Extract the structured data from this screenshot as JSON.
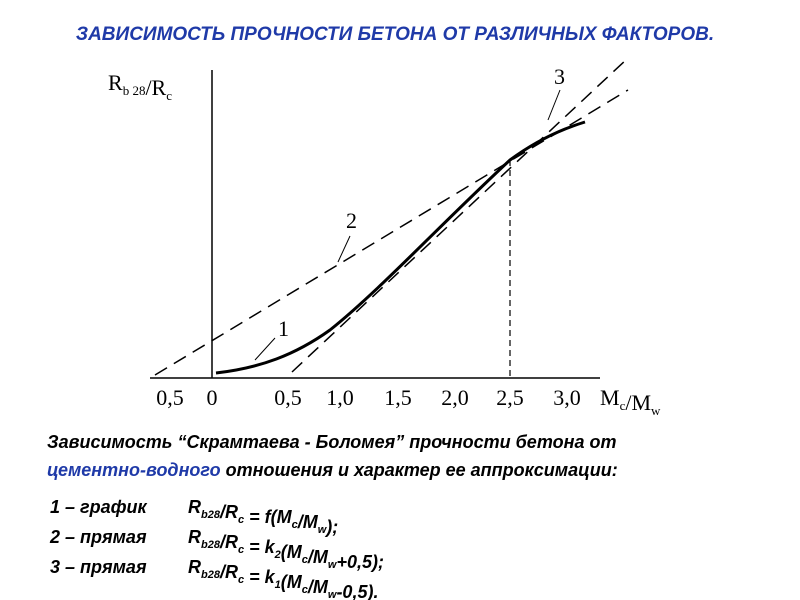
{
  "header": {
    "title": "ЗАВИСИМОСТЬ ПРОЧНОСТИ БЕТОНА ОТ РАЗЛИЧНЫХ ФАКТОРОВ."
  },
  "diagram": {
    "y_label": [
      {
        "text": "R",
        "sub": false
      },
      {
        "text": "b 28",
        "sub": true
      },
      {
        "text": "/R",
        "sub": false
      },
      {
        "text": "c",
        "sub": true
      }
    ],
    "x_label": [
      {
        "text": "M",
        "sub": false
      },
      {
        "text": "c",
        "sub": true
      },
      {
        "text": "/M",
        "sub": false
      },
      {
        "text": "w",
        "sub": true
      }
    ],
    "x_tick_labels": [
      "0,5",
      "0",
      "0,5",
      "1,0",
      "1,5",
      "2,0",
      "2,5",
      "3,0"
    ],
    "curve_labels": [
      "1",
      "2",
      "3"
    ]
  },
  "caption": {
    "line1": "Зависимость “Скрамтаева - Боломея” прочности бетона от",
    "line2_highlight": "цементно-водного",
    "line2_rest": " отношения и характер ее аппроксимации:"
  },
  "items": [
    {
      "label": "1 – график",
      "formula": [
        {
          "text": "R",
          "sub": false
        },
        {
          "text": "b28",
          "sub": true
        },
        {
          "text": "/R",
          "sub": false
        },
        {
          "text": "c",
          "sub": true
        },
        {
          "text": " = f(M",
          "sub": false
        },
        {
          "text": "c",
          "sub": true
        },
        {
          "text": "/M",
          "sub": false
        },
        {
          "text": "w",
          "sub": true
        },
        {
          "text": ");",
          "sub": false
        }
      ]
    },
    {
      "label": "2 – прямая",
      "formula": [
        {
          "text": "R",
          "sub": false
        },
        {
          "text": "b28",
          "sub": true
        },
        {
          "text": "/R",
          "sub": false
        },
        {
          "text": "c",
          "sub": true
        },
        {
          "text": " = k",
          "sub": false
        },
        {
          "text": "2",
          "sub": true
        },
        {
          "text": "(M",
          "sub": false
        },
        {
          "text": "c",
          "sub": true
        },
        {
          "text": "/M",
          "sub": false
        },
        {
          "text": "w",
          "sub": true
        },
        {
          "text": "+0,5);",
          "sub": false
        }
      ]
    },
    {
      "label": "3 – прямая",
      "formula": [
        {
          "text": "R",
          "sub": false
        },
        {
          "text": "b28",
          "sub": true
        },
        {
          "text": "/R",
          "sub": false
        },
        {
          "text": "c",
          "sub": true
        },
        {
          "text": " = k",
          "sub": false
        },
        {
          "text": "1",
          "sub": true
        },
        {
          "text": "(M",
          "sub": false
        },
        {
          "text": "c",
          "sub": true
        },
        {
          "text": "/M",
          "sub": false
        },
        {
          "text": "w",
          "sub": true
        },
        {
          "text": "-0,5).",
          "sub": false
        }
      ]
    }
  ]
}
